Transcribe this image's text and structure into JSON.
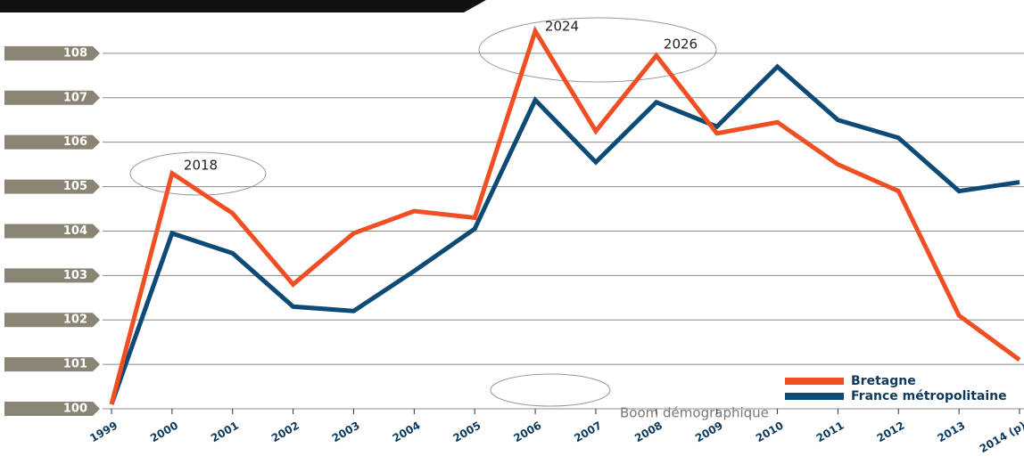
{
  "chart_data": {
    "type": "line",
    "categories": [
      "1999",
      "2000",
      "2001",
      "2002",
      "2003",
      "2004",
      "2005",
      "2006",
      "2007",
      "2008",
      "2009",
      "2010",
      "2011",
      "2012",
      "2013",
      "2014 (p)"
    ],
    "series": [
      {
        "name": "Bretagne",
        "color": "#f04e23",
        "values": [
          100.1,
          105.3,
          104.4,
          102.8,
          103.95,
          104.45,
          104.3,
          108.5,
          106.25,
          107.95,
          106.2,
          106.45,
          105.5,
          104.9,
          102.1,
          101.1
        ]
      },
      {
        "name": "France métropolitaine",
        "color": "#0d4a76",
        "values": [
          100.1,
          103.95,
          103.5,
          102.3,
          102.2,
          103.1,
          104.05,
          106.95,
          105.55,
          106.9,
          106.35,
          107.7,
          106.5,
          106.1,
          104.9,
          105.1
        ]
      }
    ],
    "ylim": [
      100,
      108.8
    ],
    "yticks": [
      100,
      101,
      102,
      103,
      104,
      105,
      106,
      107,
      108
    ],
    "grid": true,
    "legend": "lower right",
    "annotations": [
      "2018",
      "2024",
      "2026"
    ],
    "legend_note": "Boom démographique"
  }
}
